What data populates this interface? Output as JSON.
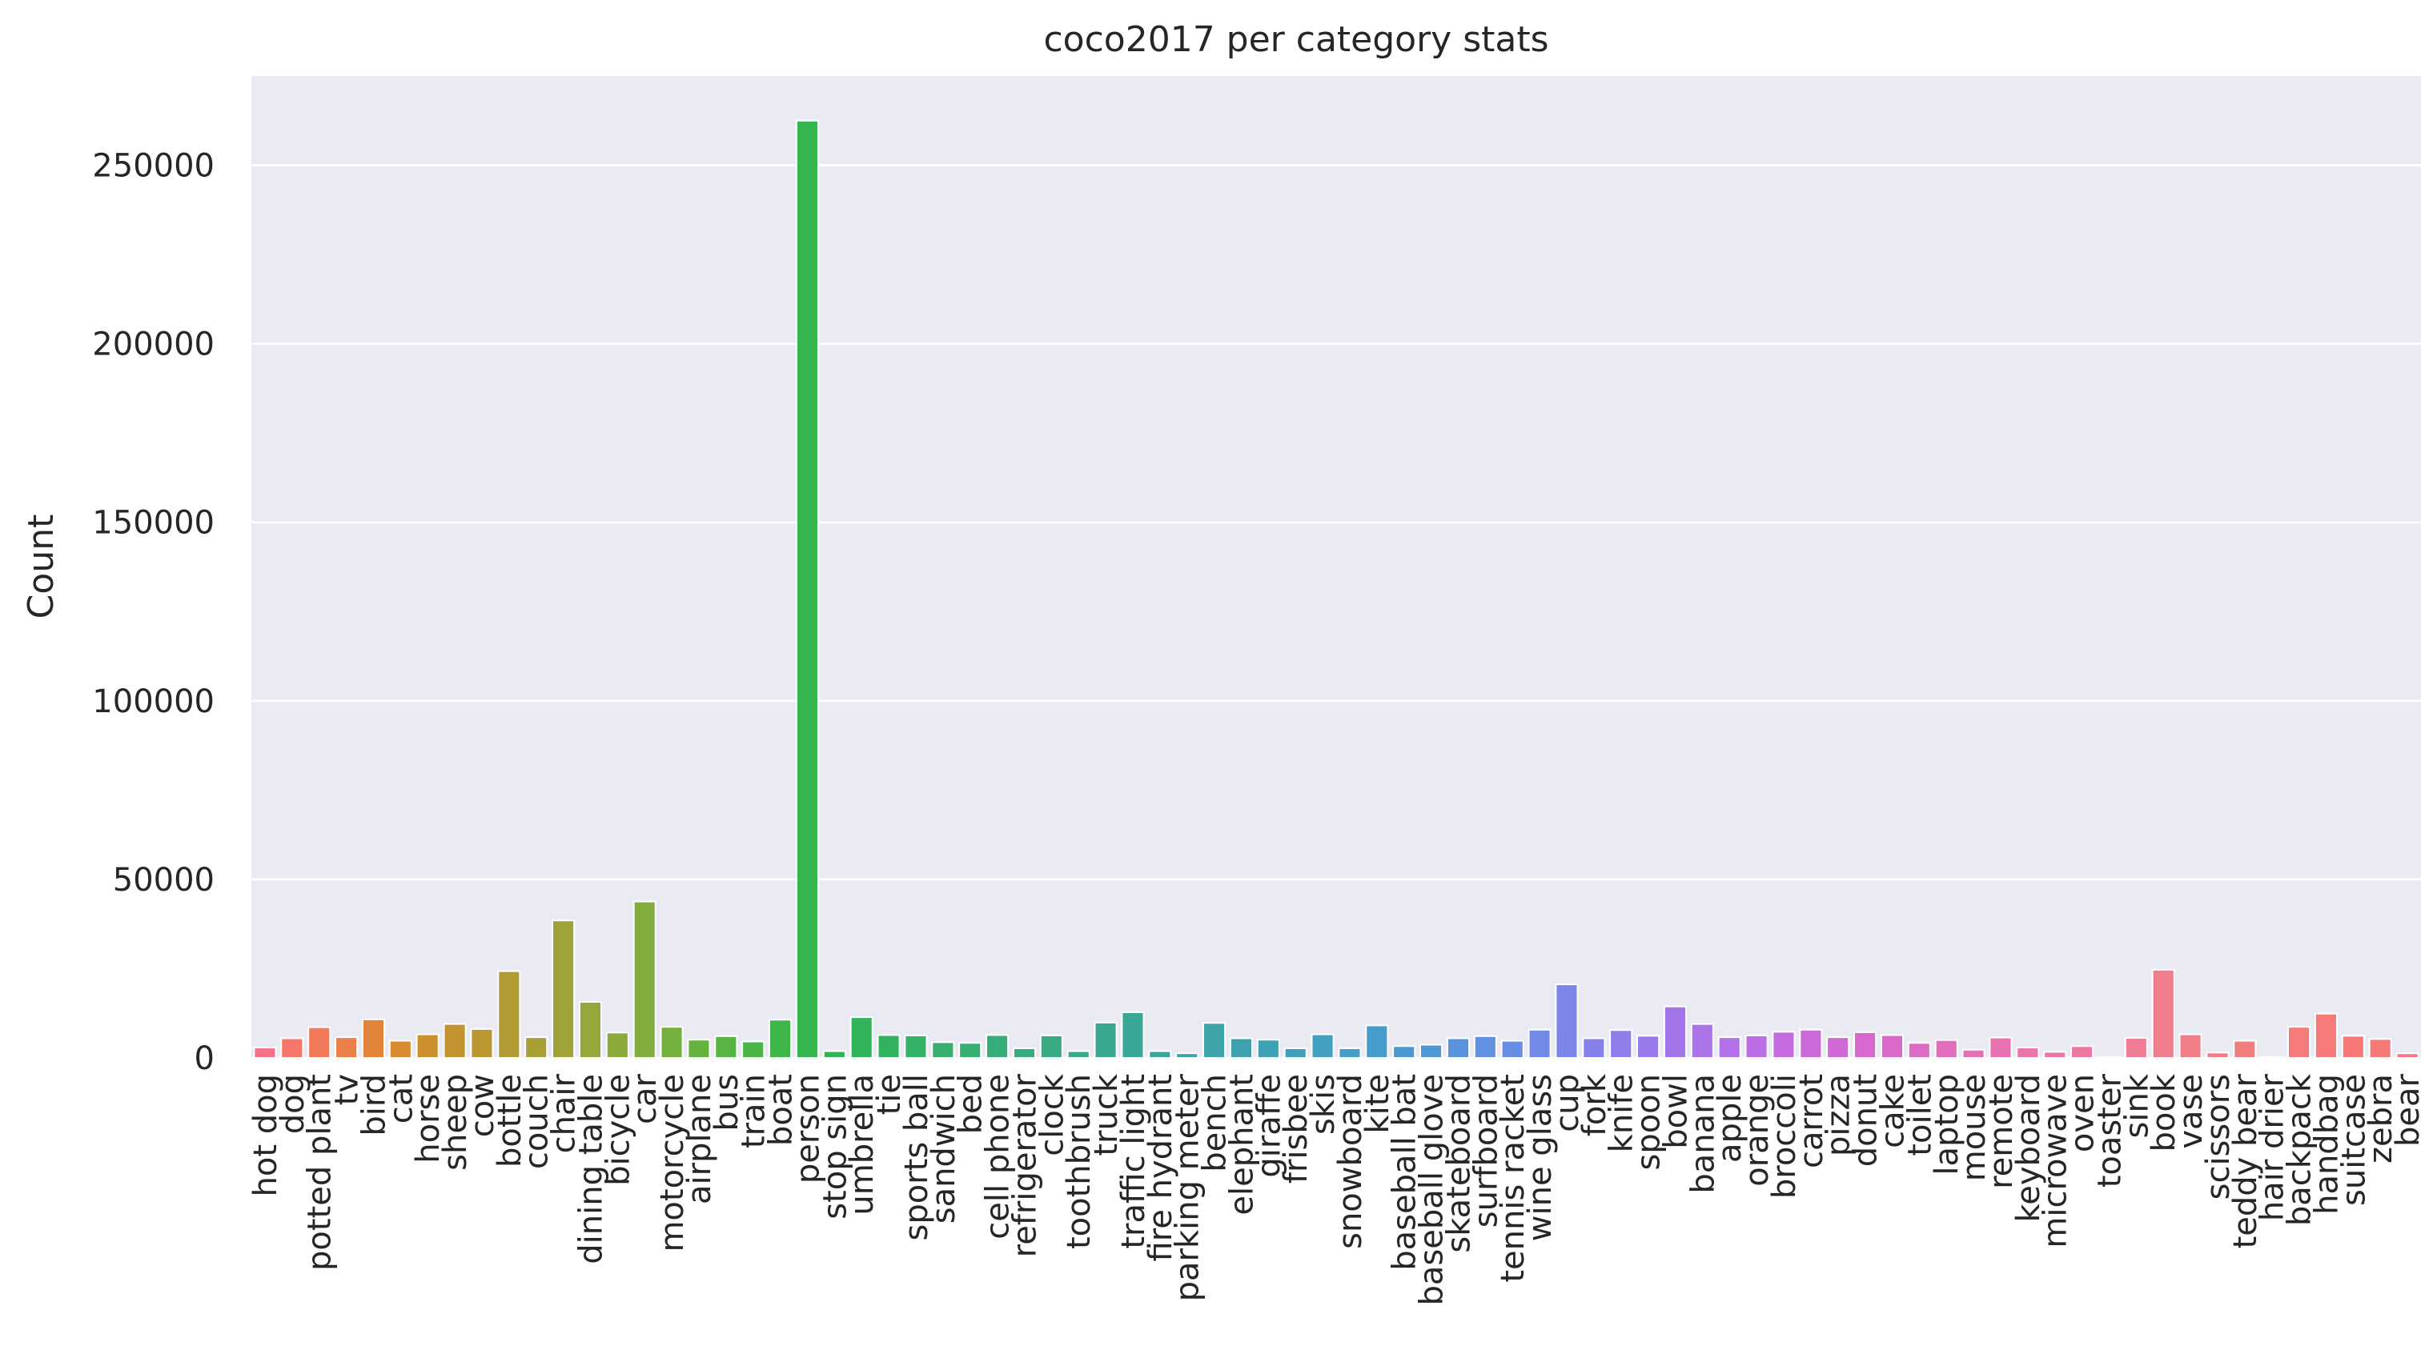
{
  "chart_data": {
    "type": "bar",
    "title": "coco2017 per category stats",
    "xlabel": "",
    "ylabel": "Count",
    "ylim": [
      0,
      275000
    ],
    "yticks": [
      0,
      50000,
      100000,
      150000,
      200000,
      250000
    ],
    "ytick_labels": [
      "0",
      "50000",
      "100000",
      "150000",
      "200000",
      "250000"
    ],
    "grid": true,
    "legend": "none",
    "background": "#EAEAF2",
    "categories": [
      "hot dog",
      "dog",
      "potted plant",
      "tv",
      "bird",
      "cat",
      "horse",
      "sheep",
      "cow",
      "bottle",
      "couch",
      "chair",
      "dining table",
      "bicycle",
      "car",
      "motorcycle",
      "airplane",
      "bus",
      "train",
      "boat",
      "person",
      "stop sign",
      "umbrella",
      "tie",
      "sports ball",
      "sandwich",
      "bed",
      "cell phone",
      "refrigerator",
      "clock",
      "toothbrush",
      "truck",
      "traffic light",
      "fire hydrant",
      "parking meter",
      "bench",
      "elephant",
      "giraffe",
      "frisbee",
      "skis",
      "snowboard",
      "kite",
      "baseball bat",
      "baseball glove",
      "skateboard",
      "surfboard",
      "tennis racket",
      "wine glass",
      "cup",
      "fork",
      "knife",
      "spoon",
      "bowl",
      "banana",
      "apple",
      "orange",
      "broccoli",
      "carrot",
      "pizza",
      "donut",
      "cake",
      "toilet",
      "laptop",
      "mouse",
      "remote",
      "keyboard",
      "microwave",
      "oven",
      "toaster",
      "sink",
      "book",
      "vase",
      "scissors",
      "teddy bear",
      "hair drier",
      "backpack",
      "handbag",
      "suitcase",
      "zebra",
      "bear"
    ],
    "values": [
      2900,
      5500,
      8600,
      5800,
      10800,
      4800,
      6600,
      9500,
      8100,
      24300,
      5800,
      38500,
      15700,
      7100,
      43800,
      8700,
      5100,
      6100,
      4600,
      10700,
      262500,
      1900,
      11400,
      6400,
      6300,
      4400,
      4200,
      6400,
      2700,
      6300,
      1900,
      9900,
      12800,
      1900,
      1300,
      9800,
      5500,
      5100,
      2700,
      6600,
      2700,
      9100,
      3300,
      3700,
      5500,
      6100,
      4800,
      7900,
      20600,
      5500,
      7800,
      6200,
      14400,
      9500,
      5800,
      6300,
      7300,
      7900,
      5800,
      7200,
      6400,
      4200,
      5000,
      2300,
      5700,
      2900,
      1700,
      3300,
      200,
      5600,
      24700,
      6600,
      1500,
      4800,
      200,
      8700,
      12400,
      6200,
      5300,
      1300
    ],
    "colors": [
      "#F77189",
      "#F7766A",
      "#F27A5A",
      "#EA7F49",
      "#E18439",
      "#D78A30",
      "#CC8F2E",
      "#C3932F",
      "#BA9731",
      "#B19B33",
      "#A89F35",
      "#9FA337",
      "#96A739",
      "#8BAA3B",
      "#80AD3D",
      "#73B03F",
      "#65B240",
      "#57B442",
      "#49B545",
      "#3CB648",
      "#34B54D",
      "#32B453",
      "#31B35A",
      "#31B260",
      "#33B166",
      "#34B06C",
      "#35AE72",
      "#36AD78",
      "#37AC7E",
      "#38AA84",
      "#39A98A",
      "#3AA890",
      "#3AA796",
      "#3BA59C",
      "#3CA4A2",
      "#3DA3A8",
      "#3EA2AE",
      "#3FA1B4",
      "#40A0BA",
      "#429FBF",
      "#449EC5",
      "#469CCB",
      "#4A9AD1",
      "#5097D6",
      "#5794DC",
      "#5F91E0",
      "#688DE4",
      "#7289E6",
      "#7C85E8",
      "#8681E9",
      "#8F7DEA",
      "#997AEA",
      "#A276E9",
      "#AB73E8",
      "#B470E6",
      "#BD6DE3",
      "#C56ADF",
      "#CC69DA",
      "#D268D5",
      "#D768CF",
      "#DB69C9",
      "#DE6BC3",
      "#E16DBD",
      "#E46FB7",
      "#E672B1",
      "#E874AB",
      "#EA76A5",
      "#EC789F",
      "#ED7A99",
      "#EE7C93",
      "#EF7E8D",
      "#F07F87",
      "#F17E83",
      "#F27D7F",
      "#F37C7C",
      "#F47B7A",
      "#F57A78",
      "#F67977",
      "#F67877",
      "#F77589"
    ]
  }
}
